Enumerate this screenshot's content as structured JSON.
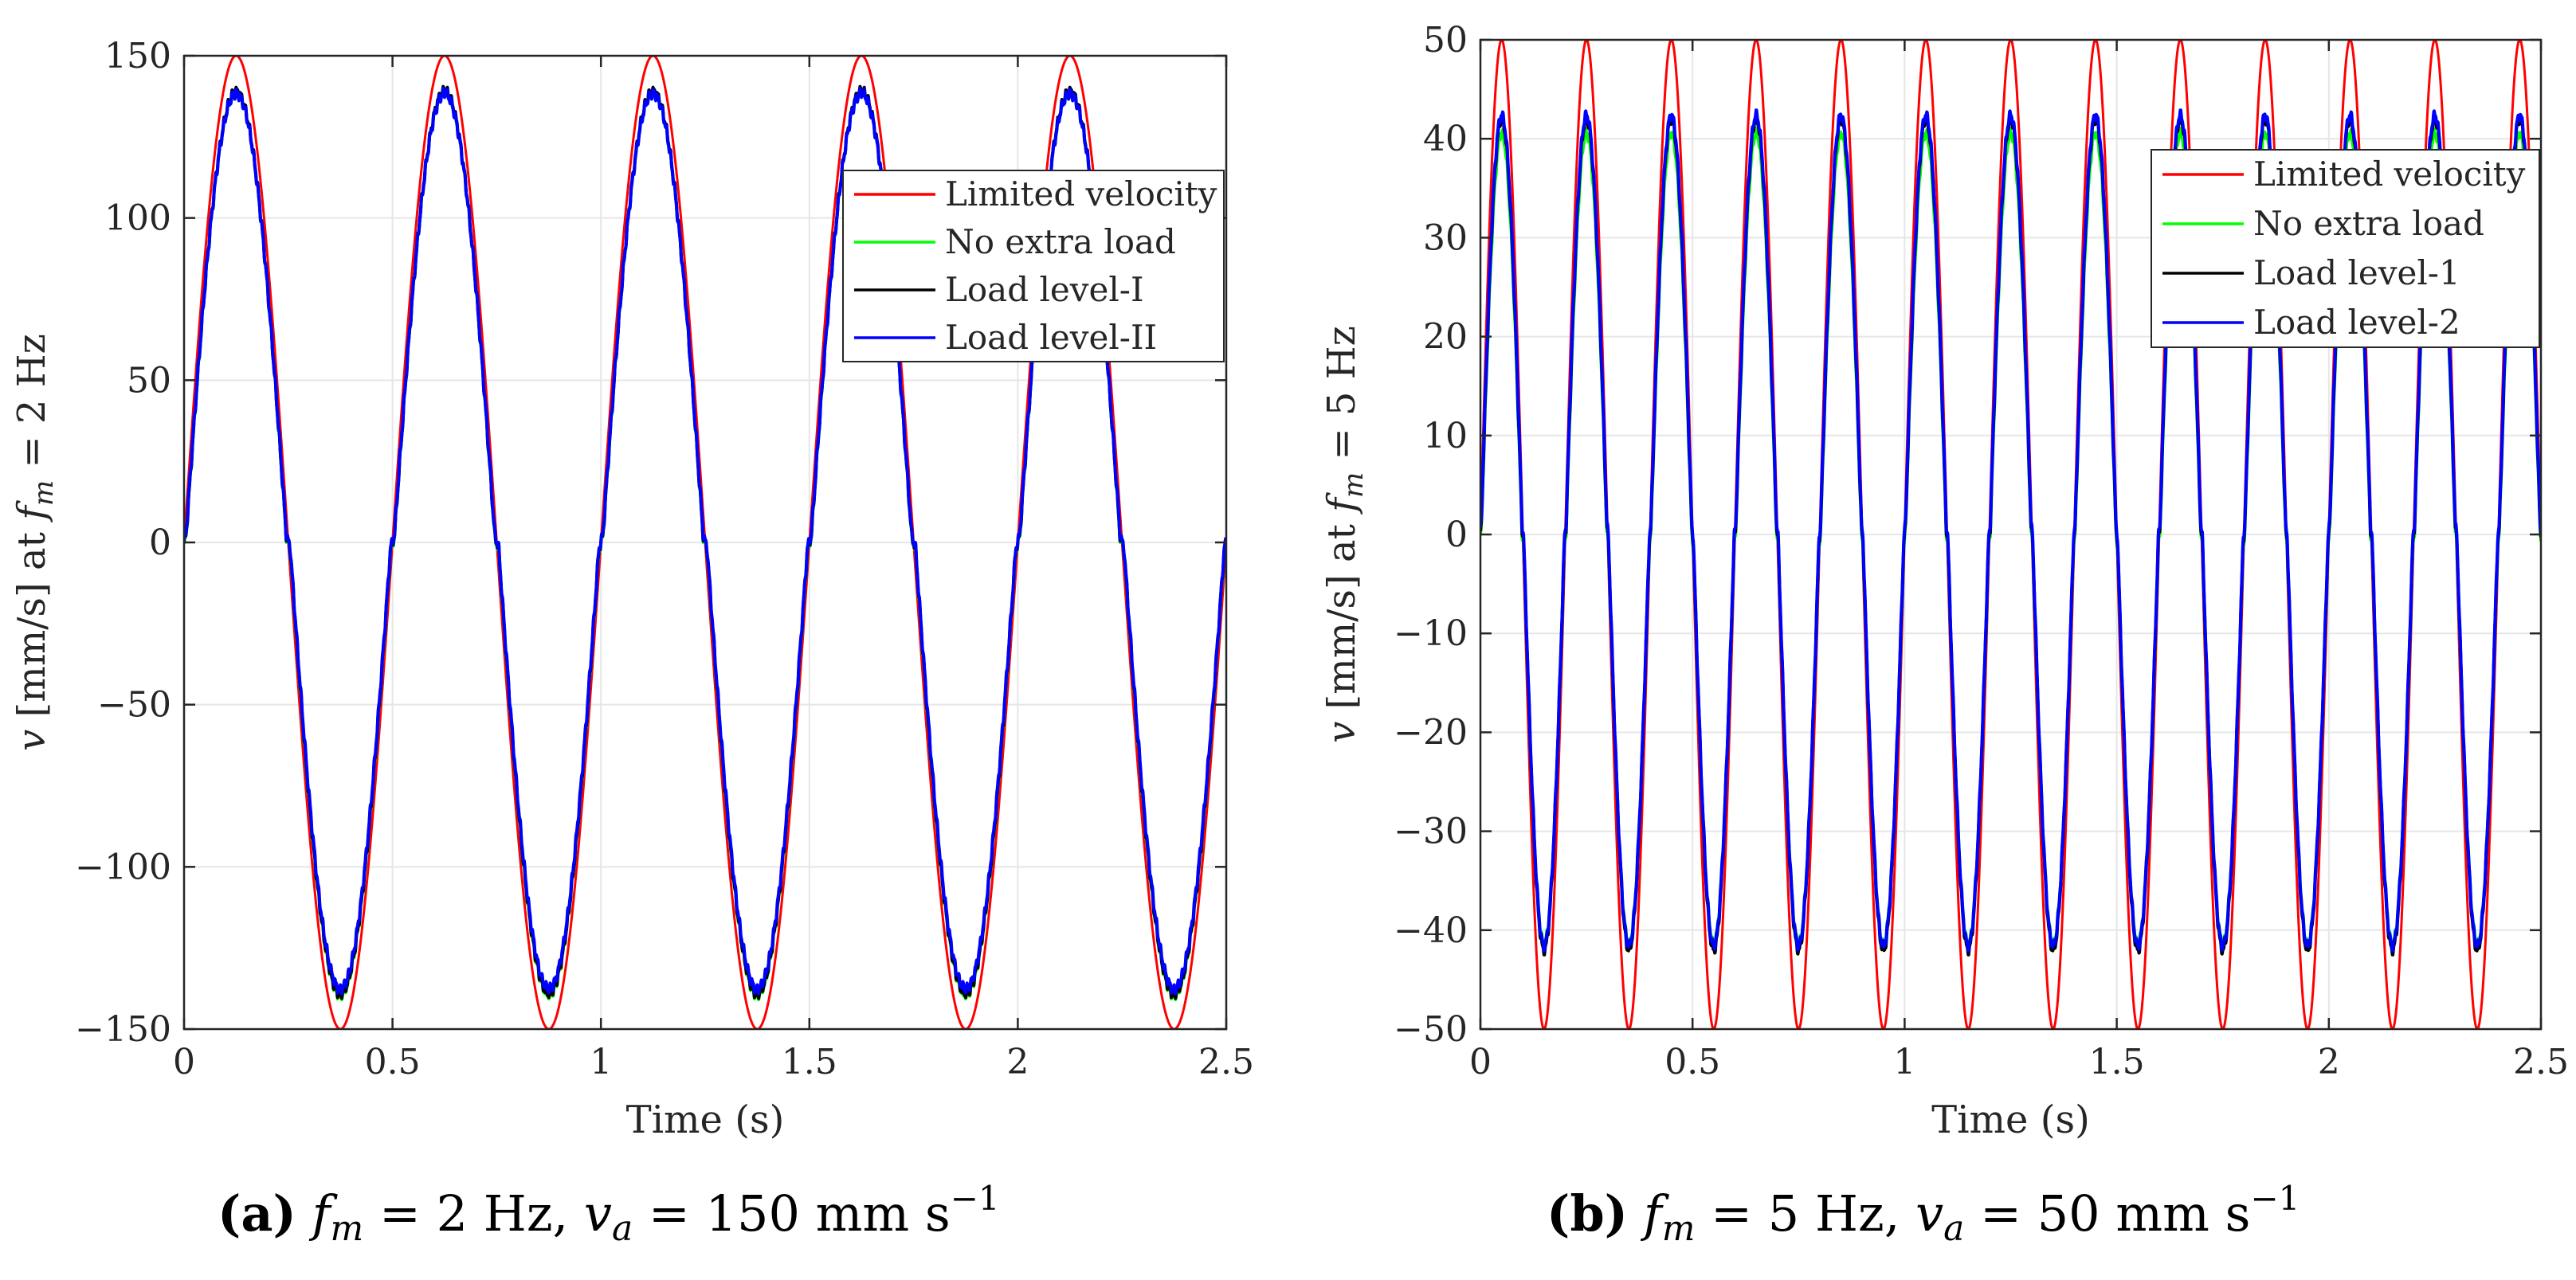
{
  "chart_data": [
    {
      "type": "line",
      "panel": "a",
      "xlabel": "Time (s)",
      "ylabel": "v [mm/s] at f_m = 2 Hz",
      "ylabel_parts": {
        "var": "v",
        "unit": " [mm/s] at ",
        "sym": "f",
        "sub": "m",
        "rest": " = 2 Hz"
      },
      "xlim": [
        0,
        2.5
      ],
      "ylim": [
        -150,
        150
      ],
      "xticks": [
        0,
        0.5,
        1,
        1.5,
        2,
        2.5
      ],
      "xtick_labels": [
        "0",
        "0.5",
        "1",
        "1.5",
        "2",
        "2.5"
      ],
      "yticks": [
        -150,
        -100,
        -50,
        0,
        50,
        100,
        150
      ],
      "ytick_labels": [
        "−150",
        "−100",
        "−50",
        "0",
        "50",
        "100",
        "150"
      ],
      "grid": true,
      "legend_position": "upper-right",
      "frequency_hz": 2,
      "series": [
        {
          "name": "Limited velocity",
          "color": "#ff0000",
          "amplitude": 150,
          "shape": "sine"
        },
        {
          "name": "No extra load",
          "color": "#00ff00",
          "amplitude": 139,
          "shape": "response"
        },
        {
          "name": "Load level-I",
          "color": "#000000",
          "amplitude": 139,
          "shape": "response"
        },
        {
          "name": "Load level-II",
          "color": "#0000ff",
          "amplitude": 138,
          "shape": "response"
        }
      ],
      "caption": {
        "label": "(a)",
        "text_parts": [
          "f",
          "m",
          " = 2 Hz, ",
          "v",
          "a",
          " = 150 mm s",
          "−1"
        ]
      }
    },
    {
      "type": "line",
      "panel": "b",
      "xlabel": "Time (s)",
      "ylabel": "v [mm/s] at f_m = 5 Hz",
      "ylabel_parts": {
        "var": "v",
        "unit": " [mm/s] at ",
        "sym": "f",
        "sub": "m",
        "rest": " = 5 Hz"
      },
      "xlim": [
        0,
        2.5
      ],
      "ylim": [
        -50,
        50
      ],
      "xticks": [
        0,
        0.5,
        1,
        1.5,
        2,
        2.5
      ],
      "xtick_labels": [
        "0",
        "0.5",
        "1",
        "1.5",
        "2",
        "2.5"
      ],
      "yticks": [
        -50,
        -40,
        -30,
        -20,
        -10,
        0,
        10,
        20,
        30,
        40,
        50
      ],
      "ytick_labels": [
        "−50",
        "−40",
        "−30",
        "−20",
        "−10",
        "0",
        "10",
        "20",
        "30",
        "40",
        "50"
      ],
      "grid": true,
      "legend_position": "upper-right",
      "frequency_hz": 5,
      "series": [
        {
          "name": "Limited velocity",
          "color": "#ff0000",
          "amplitude": 50,
          "shape": "sine"
        },
        {
          "name": "No extra load",
          "color": "#00ff00",
          "amplitude": 41,
          "shape": "response"
        },
        {
          "name": "Load level-1",
          "color": "#000000",
          "amplitude": 42,
          "shape": "response"
        },
        {
          "name": "Load level-2",
          "color": "#0000ff",
          "amplitude": 42,
          "shape": "response"
        }
      ],
      "caption": {
        "label": "(b)",
        "text_parts": [
          "f",
          "m",
          " = 5 Hz, ",
          "v",
          "a",
          " = 50 mm s",
          "−1"
        ]
      }
    }
  ]
}
